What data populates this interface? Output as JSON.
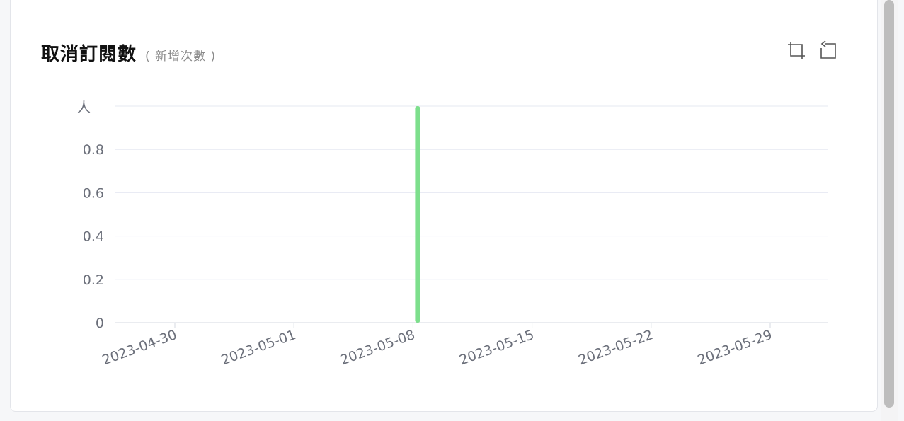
{
  "card": {
    "title": "取消訂閱數",
    "subtitle": "( 新增次數 )"
  },
  "toolbar": {
    "zoom_icon": "data-zoom-icon",
    "restore_icon": "restore-icon"
  },
  "chart_data": {
    "type": "bar",
    "title": "取消訂閱數",
    "subtitle": "( 新增次數 )",
    "ylabel": "人",
    "ylim": [
      0,
      1
    ],
    "y_ticks": [
      "0",
      "0.2",
      "0.4",
      "0.6",
      "0.8"
    ],
    "categories": [
      "2023-04-30",
      "2023-05-01",
      "2023-05-08",
      "2023-05-15",
      "2023-05-22",
      "2023-05-29"
    ],
    "series": [
      {
        "points": [
          {
            "x": "2023-05-08",
            "y": 1
          }
        ],
        "color": "#7ddf8c"
      }
    ],
    "grid": true,
    "colors": {
      "grid": "#e6e8f2",
      "axis": "#d6d9e2",
      "bar": "#7ddf8c"
    }
  }
}
